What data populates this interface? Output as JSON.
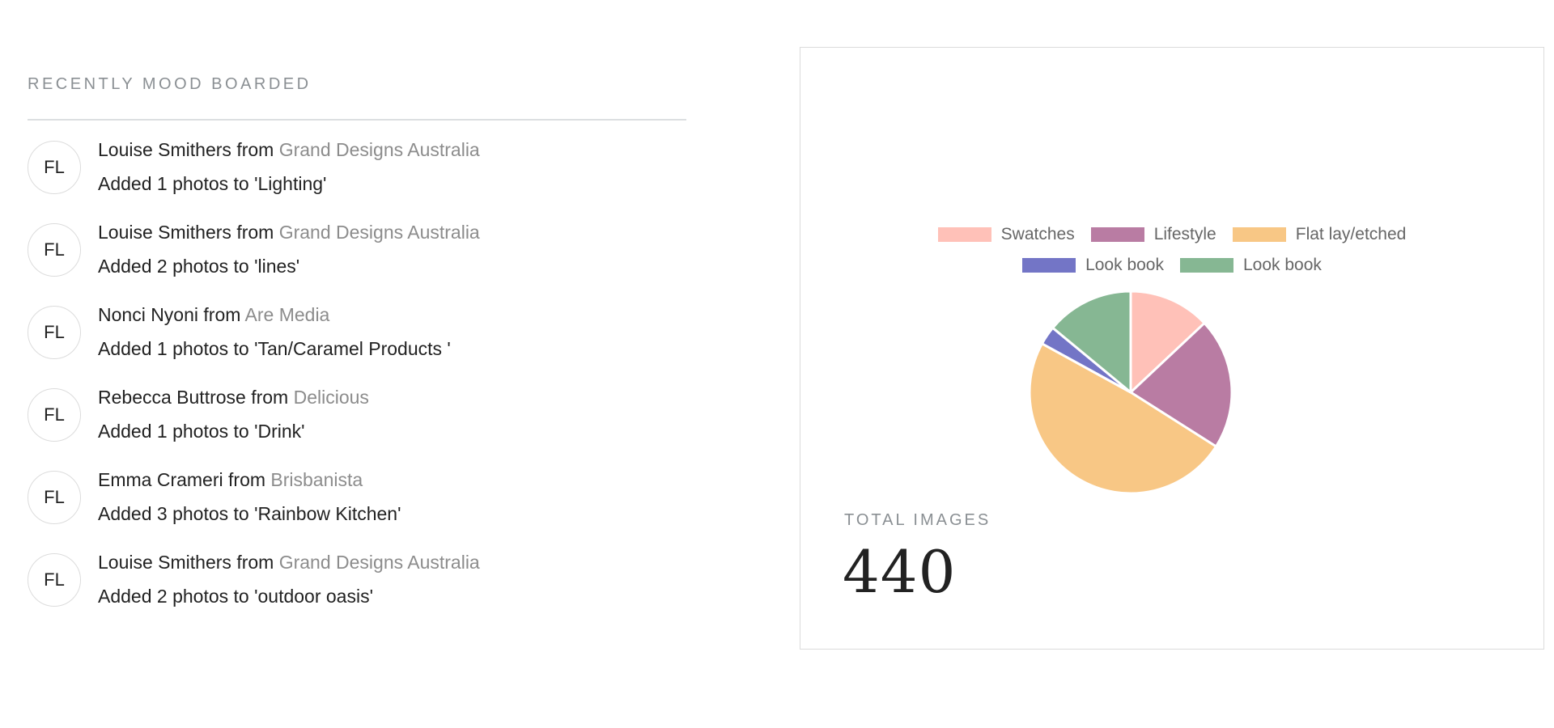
{
  "feed": {
    "title": "RECENTLY MOOD BOARDED",
    "items": [
      {
        "initials": "FL",
        "name": "Louise Smithers",
        "from": "from",
        "company": "Grand Designs Australia",
        "action": "Added 1 photos to 'Lighting'"
      },
      {
        "initials": "FL",
        "name": "Louise Smithers",
        "from": "from",
        "company": "Grand Designs Australia",
        "action": "Added 2 photos to 'lines'"
      },
      {
        "initials": "FL",
        "name": "Nonci Nyoni",
        "from": "from",
        "company": "Are Media",
        "action": "Added 1 photos to 'Tan/Caramel Products '"
      },
      {
        "initials": "FL",
        "name": "Rebecca Buttrose",
        "from": "from",
        "company": "Delicious",
        "action": "Added 1 photos to 'Drink'"
      },
      {
        "initials": "FL",
        "name": "Emma Crameri",
        "from": "from",
        "company": "Brisbanista",
        "action": "Added 3 photos to 'Rainbow Kitchen'"
      },
      {
        "initials": "FL",
        "name": "Louise Smithers",
        "from": "from",
        "company": "Grand Designs Australia",
        "action": "Added 2 photos to 'outdoor oasis'"
      }
    ]
  },
  "summary": {
    "total_label": "TOTAL IMAGES",
    "total_value": "440"
  },
  "chart_data": {
    "type": "pie",
    "legend_placement": "top-center",
    "series": [
      {
        "name": "Swatches",
        "value": 13,
        "color": "#ffc1b8"
      },
      {
        "name": "Lifestyle",
        "value": 21,
        "color": "#b97ca3"
      },
      {
        "name": "Flat lay/etched",
        "value": 49,
        "color": "#f8c785"
      },
      {
        "name": "Look book",
        "value": 3,
        "color": "#7375c6"
      },
      {
        "name": "Look book",
        "value": 14,
        "color": "#86b793"
      }
    ]
  }
}
